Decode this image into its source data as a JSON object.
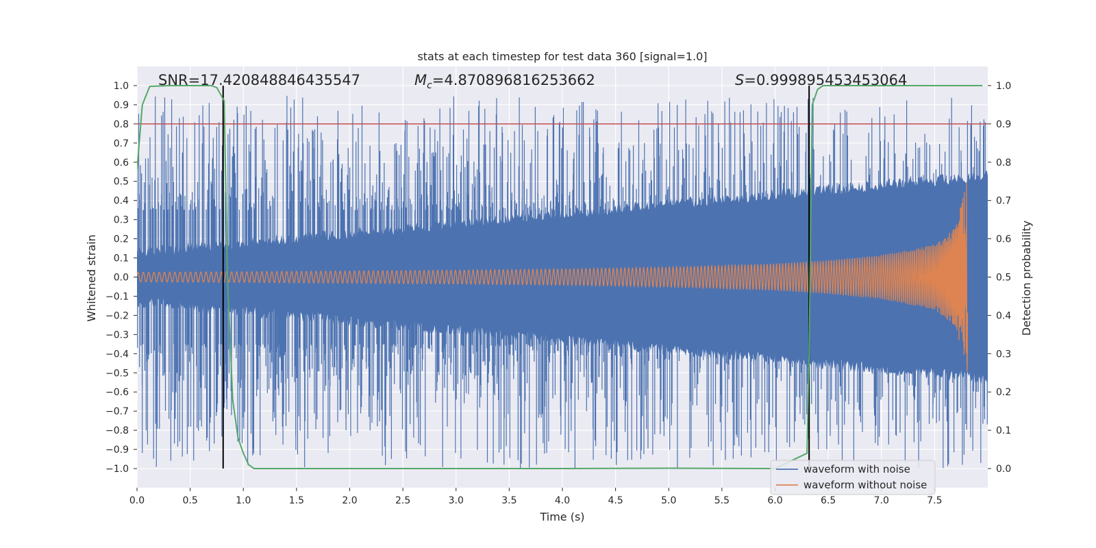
{
  "chart_data": {
    "type": "line",
    "title": "stats at each timestep for test data 360 [signal=1.0]",
    "xlabel": "Time (s)",
    "ylabel_left": "Whitened strain",
    "ylabel_right": "Detection probability",
    "xlim": [
      0.0,
      8.0
    ],
    "ylim_left": [
      -1.1,
      1.1
    ],
    "ylim_right": [
      -0.05,
      1.05
    ],
    "x_ticks": [
      0.0,
      0.5,
      1.0,
      1.5,
      2.0,
      2.5,
      3.0,
      3.5,
      4.0,
      4.5,
      5.0,
      5.5,
      6.0,
      6.5,
      7.0,
      7.5
    ],
    "x_tick_labels": [
      "0.0",
      "0.5",
      "1.0",
      "1.5",
      "2.0",
      "2.5",
      "3.0",
      "3.5",
      "4.0",
      "4.5",
      "5.0",
      "5.5",
      "6.0",
      "6.5",
      "7.0",
      "7.5"
    ],
    "y_ticks_left": [
      1.0,
      0.9,
      0.8,
      0.7,
      0.6,
      0.5,
      0.4,
      0.3,
      0.2,
      0.1,
      0.0,
      -0.1,
      -0.2,
      -0.3,
      -0.4,
      -0.5,
      -0.6,
      -0.7,
      -0.8,
      -0.9,
      -1.0
    ],
    "y_tick_labels_left": [
      "1.0",
      "0.9",
      "0.8",
      "0.7",
      "0.6",
      "0.5",
      "0.4",
      "0.3",
      "0.2",
      "0.1",
      "0.0",
      "−0.1",
      "−0.2",
      "−0.3",
      "−0.4",
      "−0.5",
      "−0.6",
      "−0.7",
      "−0.8",
      "−0.9",
      "−1.0"
    ],
    "y_ticks_right": [
      1.0,
      0.9,
      0.8,
      0.7,
      0.6,
      0.5,
      0.4,
      0.3,
      0.2,
      0.1,
      0.0
    ],
    "y_tick_labels_right": [
      "1.0",
      "0.9",
      "0.8",
      "0.7",
      "0.6",
      "0.5",
      "0.4",
      "0.3",
      "0.2",
      "0.1",
      "0.0"
    ],
    "annotations": {
      "snr_text": "SNR=17.420848846435547",
      "mc_symbol": "M",
      "mc_subscript": "c",
      "mc_value": "=4.870896816253662",
      "s_symbol": "S",
      "s_value": "=0.999895453453064"
    },
    "threshold": {
      "value": 0.8,
      "color": "#c44e52"
    },
    "vertical_markers": [
      0.81,
      6.32
    ],
    "series": [
      {
        "name": "waveform with noise",
        "color": "#4c72b0",
        "description_envelope": {
          "core_amplitude_start": 0.1,
          "core_amplitude_end": 0.5,
          "noise_peak_max": 0.95,
          "noise_floor_min": -1.0
        }
      },
      {
        "name": "waveform without noise",
        "color": "#dd8452",
        "amplitude_points": {
          "x": [
            0.0,
            1.0,
            2.0,
            3.0,
            4.0,
            5.0,
            6.0,
            6.5,
            7.0,
            7.5,
            7.7,
            7.8
          ],
          "amp": [
            0.025,
            0.028,
            0.032,
            0.036,
            0.042,
            0.052,
            0.07,
            0.088,
            0.115,
            0.17,
            0.26,
            0.5
          ]
        },
        "end_time": 7.81
      },
      {
        "name": "detection probability",
        "color": "#55a868",
        "x": [
          0.0,
          0.05,
          0.12,
          0.3,
          0.5,
          0.7,
          0.75,
          0.82,
          0.85,
          0.9,
          0.95,
          1.0,
          1.05,
          1.1,
          2.0,
          3.0,
          4.0,
          5.0,
          6.0,
          6.3,
          6.32,
          6.35,
          6.4,
          6.45,
          7.0,
          7.5,
          7.95
        ],
        "y": [
          0.78,
          0.95,
          0.998,
          1.0,
          1.0,
          1.0,
          0.995,
          0.96,
          0.5,
          0.18,
          0.08,
          0.04,
          0.01,
          0.0,
          0.0,
          0.0,
          0.0,
          0.001,
          0.0,
          0.04,
          0.3,
          0.95,
          0.99,
          1.0,
          1.0,
          1.0,
          1.0
        ]
      }
    ],
    "legend": {
      "position": "lower-right",
      "entries": [
        {
          "label": "waveform with noise",
          "color": "#4c72b0"
        },
        {
          "label": "waveform without noise",
          "color": "#dd8452"
        }
      ]
    }
  }
}
